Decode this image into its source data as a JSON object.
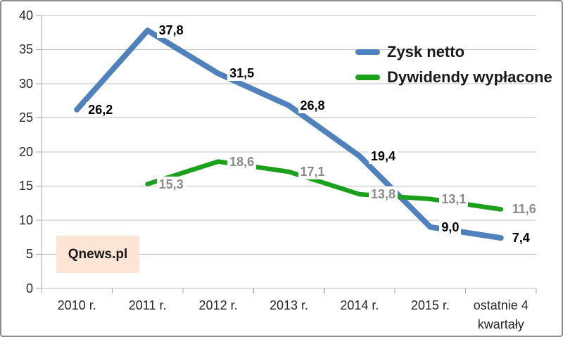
{
  "chart_data": {
    "type": "line",
    "categories": [
      "2010 r.",
      "2011 r.",
      "2012 r.",
      "2013 r.",
      "2014 r.",
      "2015 r.",
      "ostatnie 4 kwartały"
    ],
    "series": [
      {
        "name": "Zysk netto",
        "color": "#4F81BD",
        "label_color": "#000000",
        "line_width": 8,
        "values": [
          26.2,
          37.8,
          31.5,
          26.8,
          19.4,
          9.0,
          7.4
        ],
        "point_labels": [
          "26,2",
          "37,8",
          "31,5",
          "26,8",
          "19,4",
          "9,0",
          "7,4"
        ]
      },
      {
        "name": "Dywidendy wypłacone",
        "color": "#1AA01A",
        "label_color": "#8A8A8A",
        "line_width": 6.5,
        "values": [
          null,
          15.3,
          18.6,
          17.1,
          13.8,
          13.1,
          11.6
        ],
        "point_labels": [
          null,
          "15,3",
          "18,6",
          "17,1",
          "13,8",
          "13,1",
          "11,6"
        ]
      }
    ],
    "ylim": [
      0,
      40
    ],
    "ytick_step": 5,
    "yticks": [
      "0",
      "5",
      "10",
      "15",
      "20",
      "25",
      "30",
      "35",
      "40"
    ],
    "grid": "horizontal",
    "legend_position": "top-right",
    "decimal_separator": ","
  },
  "watermark": {
    "label": "Qnews.pl",
    "bg": "#FCE5D5"
  },
  "colors": {
    "gridline": "#BFBFBF",
    "axis": "#A6A6A6",
    "tick_label": "#262626",
    "frame_border": "#8C8C8C",
    "background": "#FFFFFF"
  }
}
